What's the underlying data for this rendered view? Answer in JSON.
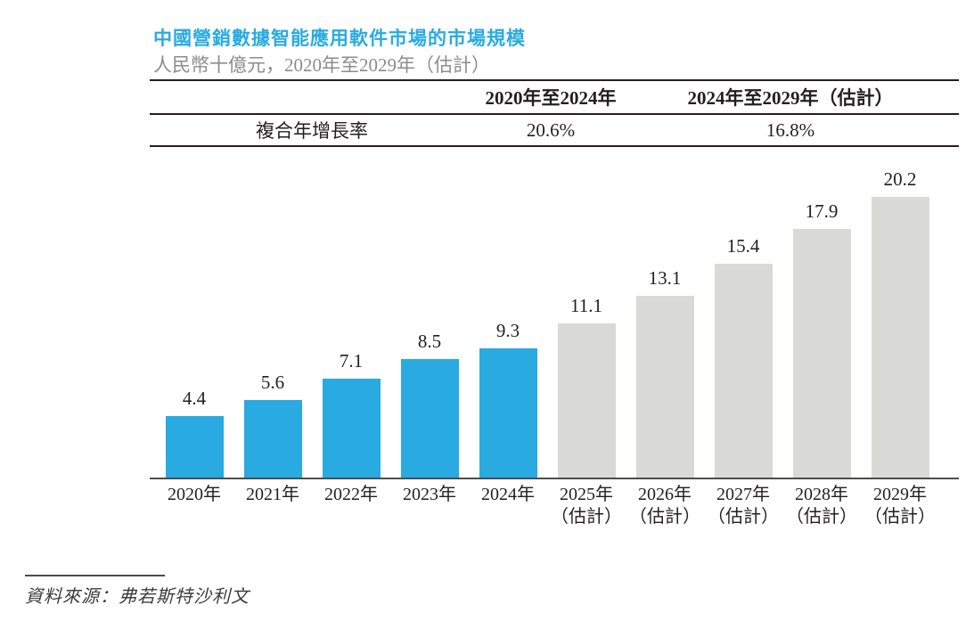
{
  "header": {
    "title": "中國營銷數據智能應用軟件市場的市場規模",
    "subtitle": "人民幣十億元，2020年至2029年（估計）"
  },
  "table": {
    "col_headers": [
      "",
      "2020年至2024年",
      "2024年至2029年（估計）"
    ],
    "row_label": "複合年增長率",
    "cagr_2020_2024": "20.6%",
    "cagr_2024_2029": "16.8%"
  },
  "chart_data": {
    "type": "bar",
    "title": "中國營銷數據智能應用軟件市場的市場規模",
    "ylabel": "人民幣十億元",
    "categories": [
      "2020年",
      "2021年",
      "2022年",
      "2023年",
      "2024年",
      "2025年",
      "2026年",
      "2027年",
      "2028年",
      "2029年"
    ],
    "category_sublabels": [
      "",
      "",
      "",
      "",
      "",
      "（估計）",
      "（估計）",
      "（估計）",
      "（估計）",
      "（估計）"
    ],
    "values": [
      4.4,
      5.6,
      7.1,
      8.5,
      9.3,
      11.1,
      13.1,
      15.4,
      17.9,
      20.2
    ],
    "groups": [
      "actual",
      "actual",
      "actual",
      "actual",
      "actual",
      "estimate",
      "estimate",
      "estimate",
      "estimate",
      "estimate"
    ],
    "group_colors": {
      "actual": "#29aae1",
      "estimate": "#d9d9d6"
    },
    "value_labels": true,
    "ylim": [
      0,
      21.6
    ],
    "grid": false,
    "legend": "none"
  },
  "footer": {
    "source": "資料來源：弗若斯特沙利文"
  }
}
